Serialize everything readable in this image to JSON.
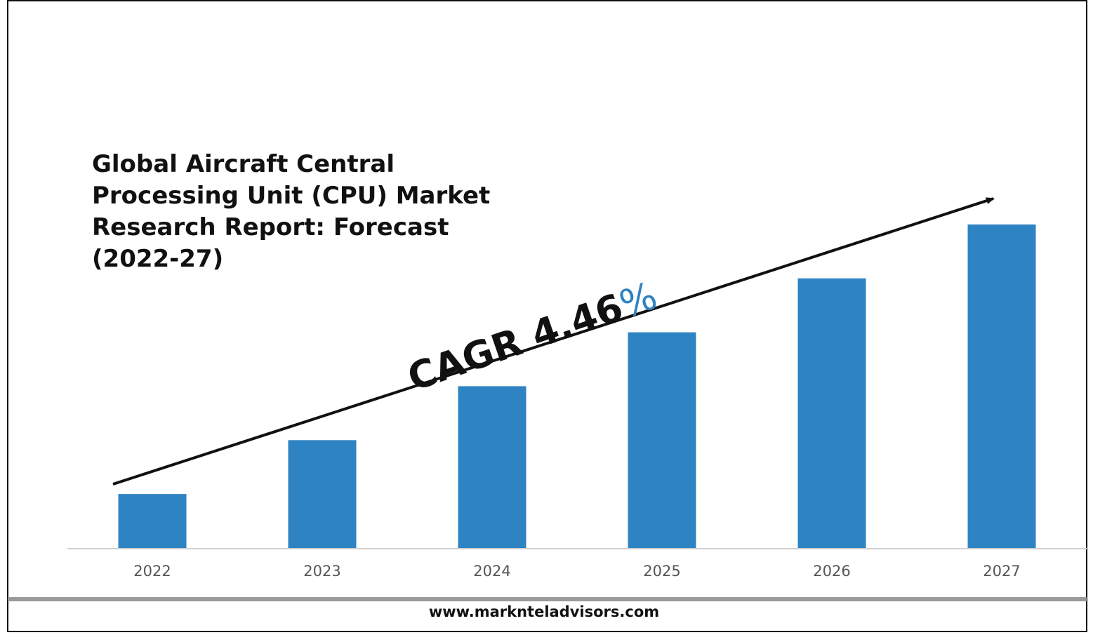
{
  "title_lines": [
    "Global Aircraft Central",
    "Processing Unit (CPU) Market",
    "Research Report: Forecast",
    "(2022-27)"
  ],
  "annotation": {
    "prefix": "CAGR 4.46",
    "suffix": "%"
  },
  "footer": {
    "url": "www.marknteladvisors.com"
  },
  "colors": {
    "bar": "#2e83c3",
    "accent": "#2e83c3",
    "text": "#111111",
    "axis": "#d0d0d0"
  },
  "chart_data": {
    "type": "bar",
    "title": "Global Aircraft Central Processing Unit (CPU) Market Research Report: Forecast (2022-27)",
    "categories": [
      "2022",
      "2023",
      "2024",
      "2025",
      "2026",
      "2027"
    ],
    "values": [
      1.0,
      2.0,
      3.0,
      4.0,
      5.0,
      6.0
    ],
    "ylim": [
      0,
      7.0
    ],
    "xlabel": "",
    "ylabel": "",
    "grid": false,
    "annotations": [
      "CAGR 4.46%"
    ]
  }
}
